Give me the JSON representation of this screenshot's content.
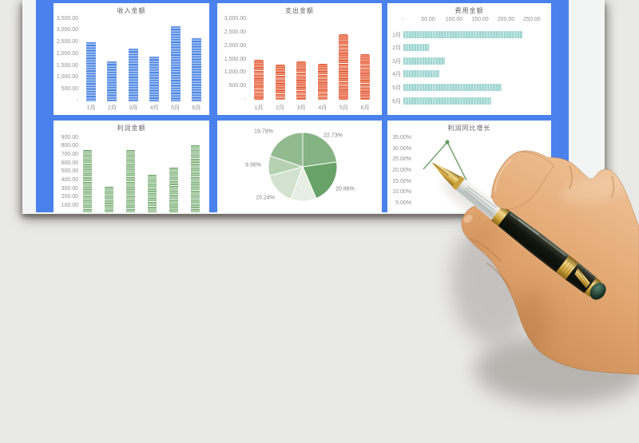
{
  "colors": {
    "background": "#e9e9e7",
    "paper": "#f3f5f5",
    "board_blue": "#4a81ed",
    "bar_blue": "#4e86e4",
    "bar_orange": "#ed7352",
    "bar_teal": "#a8d8d4",
    "bar_green": "#9cc598",
    "line_green": "#79a878",
    "axis_text": "#8f8f8f",
    "title_text": "#616161"
  },
  "photo": {
    "description": "hand holding fountain pen over the sheet"
  },
  "chart_data": [
    {
      "type": "bar",
      "title": "收入金额",
      "y_axis_labels": [
        "3,500.00",
        "3,000.00",
        "2,500.00",
        "2,000.00",
        "1,500.00",
        "1,000.00",
        "500.00",
        "-"
      ],
      "ylim": [
        0,
        3500
      ],
      "categories": [
        "1月",
        "2月",
        "3月",
        "4月",
        "5月",
        "6月"
      ],
      "values": [
        2500,
        1680,
        2250,
        1890,
        3170,
        2690
      ],
      "grid": false
    },
    {
      "type": "bar",
      "title": "支出金额",
      "y_axis_labels": [
        "3,000.00",
        "2,500.00",
        "2,000.00",
        "1,500.00",
        "1,000.00",
        "500.00",
        "-"
      ],
      "ylim": [
        0,
        3000
      ],
      "categories": [
        "1月",
        "2月",
        "3月",
        "4月",
        "5月",
        "6月"
      ],
      "values": [
        1500,
        1300,
        1430,
        1350,
        2450,
        1700
      ],
      "grid": false
    },
    {
      "type": "bar-horizontal",
      "title": "费用金额",
      "x_axis_labels": [
        "-",
        "50.00",
        "100.00",
        "150.00",
        "200.00",
        "250.00"
      ],
      "xlim": [
        0,
        250
      ],
      "categories": [
        "1月",
        "2月",
        "3月",
        "4月",
        "5月",
        "6月"
      ],
      "values": [
        230,
        50,
        80,
        70,
        190,
        170
      ],
      "grid": false
    },
    {
      "type": "bar",
      "title": "利润金额",
      "y_axis_labels": [
        "900.00",
        "800.00",
        "700.00",
        "600.00",
        "500.00",
        "400.00",
        "300.00",
        "200.00",
        "100.00"
      ],
      "ylim_top": 900,
      "values": [
        760,
        330,
        760,
        470,
        550,
        810
      ],
      "category_labels_cut_off": true,
      "grid": false
    },
    {
      "type": "pie",
      "title": "",
      "slices": [
        {
          "label": "22.73%",
          "value": 22.73
        },
        {
          "label": "20.86%",
          "value": 20.86
        },
        {
          "label": "",
          "value": 12.02
        },
        {
          "label": "15.24%",
          "value": 15.24
        },
        {
          "label": "9.36%",
          "value": 9.36
        },
        {
          "label": "19.79%",
          "value": 19.79
        }
      ]
    },
    {
      "type": "line",
      "title": "利润同比增长",
      "y_axis_labels": [
        "35.00%",
        "30.00%",
        "25.00%",
        "20.00%",
        "15.00%",
        "10.00%",
        "5.00%"
      ],
      "visible_values_pct": [
        20,
        33,
        11
      ],
      "occluded_by": "hand-holding-pen-photo"
    }
  ]
}
